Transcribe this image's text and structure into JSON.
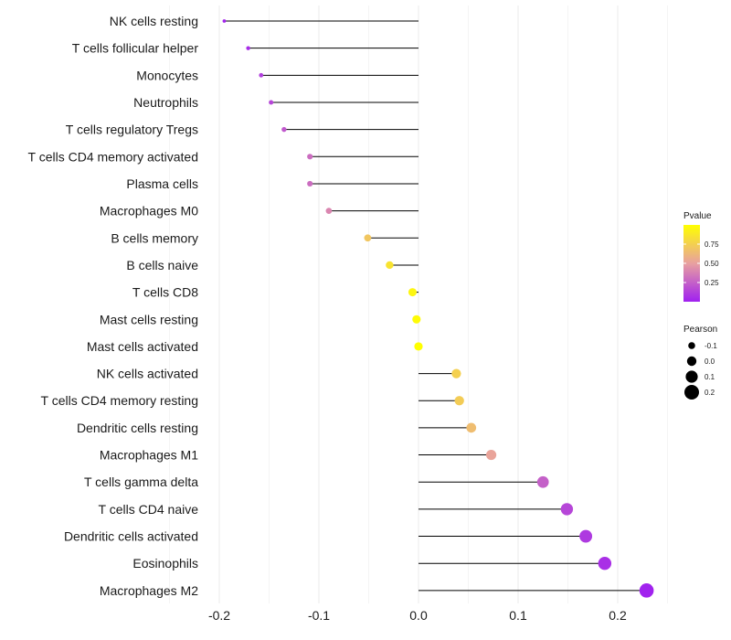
{
  "chart_data": {
    "type": "lollipop",
    "title": "",
    "xlabel": "",
    "ylabel": "",
    "xlim": [
      -0.205,
      0.25
    ],
    "x_ticks": [
      -0.2,
      -0.1,
      0.0,
      0.1,
      0.2
    ],
    "x_tick_labels": [
      "-0.2",
      "-0.1",
      "0.0",
      "0.1",
      "0.2"
    ],
    "grid": true,
    "categories": [
      "NK cells resting",
      "T cells follicular helper",
      "Monocytes",
      "Neutrophils",
      "T cells regulatory  Tregs",
      "T cells CD4 memory activated",
      "Plasma cells",
      "Macrophages M0",
      "B cells memory",
      "B cells naive",
      "T cells CD8",
      "Mast cells resting",
      "Mast cells activated",
      "NK cells activated",
      "T cells CD4 memory resting",
      "Dendritic cells resting",
      "Macrophages M1",
      "T cells gamma delta",
      "T cells CD4 naive",
      "Dendritic cells activated",
      "Eosinophils",
      "Macrophages M2"
    ],
    "pearson": [
      -0.195,
      -0.171,
      -0.158,
      -0.148,
      -0.135,
      -0.109,
      -0.109,
      -0.09,
      -0.051,
      -0.029,
      -0.006,
      -0.002,
      0.0,
      0.038,
      0.041,
      0.053,
      0.073,
      0.125,
      0.149,
      0.168,
      0.187,
      0.229
    ],
    "pvalue": [
      0.02,
      0.05,
      0.12,
      0.15,
      0.22,
      0.3,
      0.3,
      0.4,
      0.7,
      0.85,
      0.95,
      0.98,
      1.0,
      0.75,
      0.73,
      0.65,
      0.52,
      0.25,
      0.15,
      0.1,
      0.06,
      0.01
    ],
    "legend_color": {
      "title": "Pvalue",
      "ticks": [
        0.25,
        0.5,
        0.75
      ],
      "tick_labels": [
        "0.25",
        "0.50",
        "0.75"
      ],
      "range": [
        0.0,
        1.0
      ],
      "low_color": "#a020f0",
      "mid_color": "#e8a0a0",
      "high_color": "#ffff00",
      "position": "right"
    },
    "legend_size": {
      "title": "Pearson",
      "values": [
        -0.1,
        0.0,
        0.1,
        0.2
      ],
      "labels": [
        "-0.1",
        "0.0",
        "0.1",
        "0.2"
      ],
      "position": "right"
    },
    "colors": {
      "stem": "#000000",
      "grid": "#ebebeb"
    }
  }
}
